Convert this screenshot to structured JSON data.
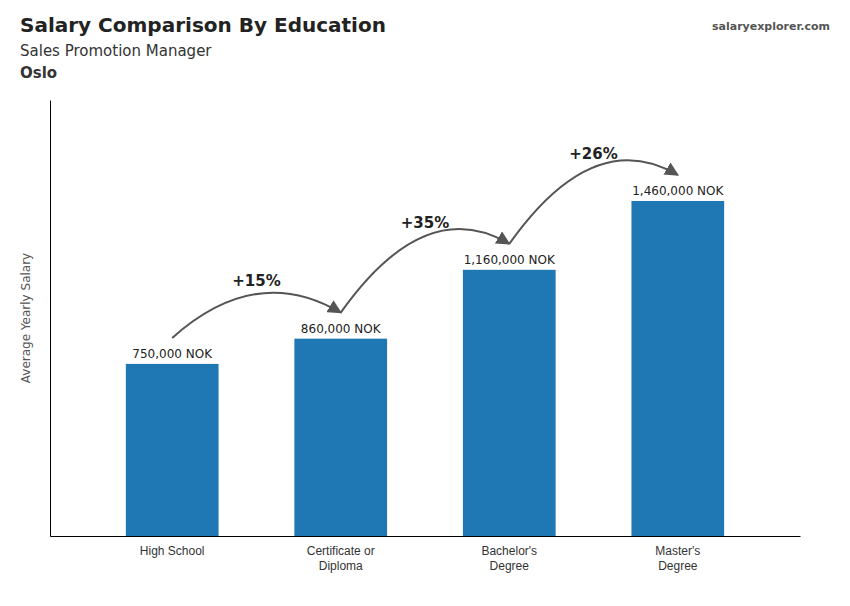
{
  "chart_data": {
    "type": "bar",
    "title": "Salary Comparison By Education",
    "subtitle": "Sales Promotion Manager",
    "location": "Oslo",
    "source": "salaryexplorer.com",
    "categories": [
      "High School",
      "Certificate or\nDiploma",
      "Bachelor's\nDegree",
      "Master's\nDegree"
    ],
    "values": [
      750000,
      860000,
      1160000,
      1460000
    ],
    "value_labels": [
      "750,000 NOK",
      "860,000 NOK",
      "1,160,000 NOK",
      "1,460,000 NOK"
    ],
    "data_labels": true,
    "annotations": [
      "+15%",
      "+35%",
      "+26%"
    ],
    "ylabel": "Average Yearly Salary",
    "ylim": [
      0,
      1900000
    ],
    "tick_labels": "x",
    "grid": false
  }
}
